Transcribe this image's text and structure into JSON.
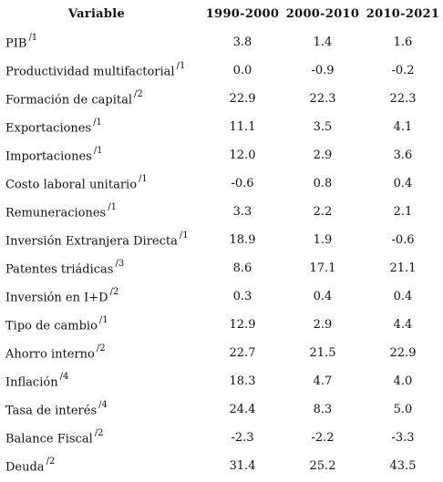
{
  "table": {
    "headers": {
      "variable": "Variable",
      "periods": [
        "1990-2000",
        "2000-2010",
        "2010-2021"
      ]
    },
    "rows": [
      {
        "name": "PIB",
        "note": "/1",
        "values": [
          "3.8",
          "1.4",
          "1.6"
        ]
      },
      {
        "name": "Productividad multifactorial",
        "note": "/1",
        "values": [
          "0.0",
          "-0.9",
          "-0.2"
        ]
      },
      {
        "name": "Formación de capital",
        "note": "/2",
        "values": [
          "22.9",
          "22.3",
          "22.3"
        ]
      },
      {
        "name": "Exportaciones",
        "note": "/1",
        "values": [
          "11.1",
          "3.5",
          "4.1"
        ]
      },
      {
        "name": "Importaciones",
        "note": "/1",
        "values": [
          "12.0",
          "2.9",
          "3.6"
        ]
      },
      {
        "name": "Costo laboral unitario",
        "note": "/1",
        "values": [
          "-0.6",
          "0.8",
          "0.4"
        ]
      },
      {
        "name": "Remuneraciones",
        "note": "/1",
        "values": [
          "3.3",
          "2.2",
          "2.1"
        ]
      },
      {
        "name": "Inversión Extranjera Directa",
        "note": "/1",
        "values": [
          "18.9",
          "1.9",
          "-0.6"
        ]
      },
      {
        "name": "Patentes triádicas",
        "note": "/3",
        "values": [
          "8.6",
          "17.1",
          "21.1"
        ]
      },
      {
        "name": "Inversión en I+D",
        "note": "/2",
        "values": [
          "0.3",
          "0.4",
          "0.4"
        ]
      },
      {
        "name": "Tipo de cambio",
        "note": "/1",
        "values": [
          "12.9",
          "2.9",
          "4.4"
        ]
      },
      {
        "name": "Ahorro interno",
        "note": "/2",
        "values": [
          "22.7",
          "21.5",
          "22.9"
        ]
      },
      {
        "name": "Inflación",
        "note": "/4",
        "values": [
          "18.3",
          "4.7",
          "4.0"
        ]
      },
      {
        "name": "Tasa de interés",
        "note": "/4",
        "values": [
          "24.4",
          "8.3",
          "5.0"
        ]
      },
      {
        "name": "Balance Fiscal",
        "note": "/2",
        "values": [
          "-2.3",
          "-2.2",
          "-3.3"
        ]
      },
      {
        "name": "Deuda",
        "note": "/2",
        "values": [
          "31.4",
          "25.2",
          "43.5"
        ]
      }
    ]
  }
}
